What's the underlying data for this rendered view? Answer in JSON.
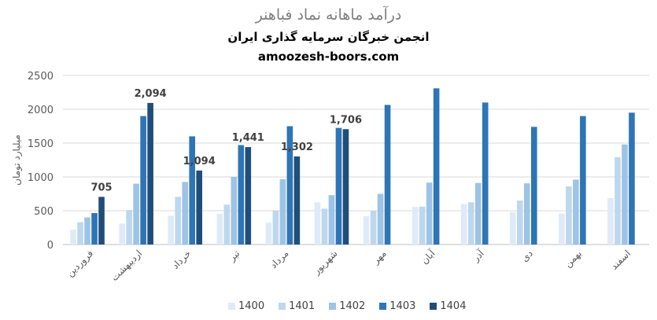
{
  "chart_data": {
    "type": "bar",
    "title": "درآمد ماهانه نماد فباهنر",
    "subtitle": "انجمن خبرگان سرمایه گذاری ایران",
    "watermark": "amoozesh-boors.com",
    "ylabel": "میلیارد تومان",
    "xlabel": "",
    "ylim": [
      0,
      2500
    ],
    "yticks": [
      "0",
      "500",
      "1000",
      "1500",
      "2000",
      "2500"
    ],
    "ytick_values": [
      0,
      500,
      1000,
      1500,
      2000,
      2500
    ],
    "grid": true,
    "legend_position": "bottom",
    "categories": [
      "فروردین",
      "اردیبهشت",
      "خرداد",
      "تیر",
      "مرداد",
      "شهریور",
      "مهر",
      "آبان",
      "آذر",
      "دی",
      "بهمن",
      "اسفند"
    ],
    "series": [
      {
        "name": "1400",
        "color": "#deebf7",
        "values": [
          220,
          310,
          425,
          455,
          325,
          625,
          420,
          555,
          600,
          480,
          455,
          685
        ]
      },
      {
        "name": "1401",
        "color": "#bdd7ee",
        "values": [
          330,
          510,
          705,
          590,
          500,
          530,
          500,
          560,
          625,
          650,
          860,
          1290
        ]
      },
      {
        "name": "1402",
        "color": "#9dc3e6",
        "values": [
          400,
          900,
          925,
          1000,
          965,
          730,
          750,
          915,
          910,
          905,
          960,
          1480
        ]
      },
      {
        "name": "1403",
        "color": "#2e75b6",
        "values": [
          465,
          1900,
          1600,
          1470,
          1750,
          1725,
          2065,
          2310,
          2100,
          1740,
          1900,
          1950
        ]
      },
      {
        "name": "1404",
        "color": "#1f4e79",
        "values": [
          705,
          2094,
          1094,
          1441,
          1302,
          1706,
          null,
          null,
          null,
          null,
          null,
          null
        ]
      }
    ],
    "data_labels": {
      "series": "1404",
      "labels": [
        "705",
        "2,094",
        "1,094",
        "1,441",
        "1,302",
        "1,706"
      ]
    }
  }
}
